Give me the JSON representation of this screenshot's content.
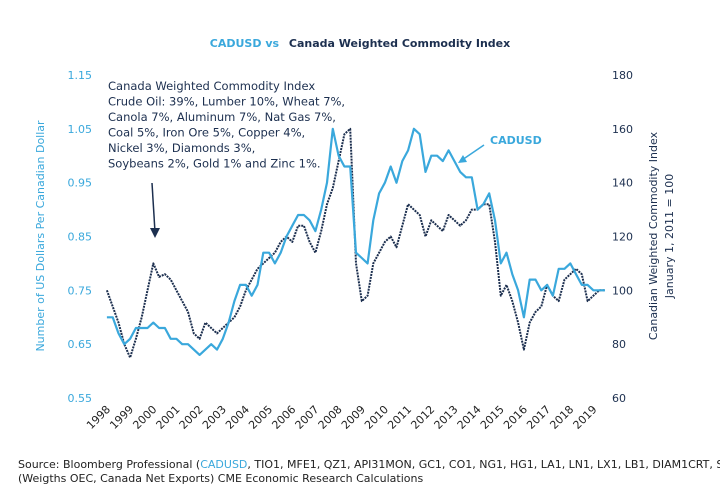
{
  "chart_data": {
    "type": "line",
    "title": [
      "CADUSD vs",
      "Canada Weighted Commodity Index"
    ],
    "title_colors": [
      "#3aa8dc",
      "#1c2f4f"
    ],
    "y_label": "Number of US Dollars Per Canadian Dollar",
    "y2_label": [
      "Canadian Weighted Commodity Index",
      "January 1, 2011 = 100"
    ],
    "annotation": [
      "Canada Weighted Commodity Index",
      "Crude Oil: 39%, Lumber 10%, Wheat 7%,",
      "Canola 7%, Aluminum 7%, Nat Gas 7%,",
      "Coal 5%, Iron Ore 5%, Copper 4%,",
      "Nickel 3%, Diamonds 3%,",
      "Soybeans 2%, Gold 1% and Zinc 1%."
    ],
    "series_label": "CADUSD",
    "source": [
      "Source: Bloomberg Professional (",
      "CADUSD",
      ", TIO1, MFE1, QZ1, API31MON, GC1, CO1, NG1, HG1, LA1, LN1, LX1, LB1, DIAM1CRT, S 1, RS1),",
      "(Weigths OEC, Canada Net Exports) CME Economic Research Calculations"
    ],
    "xlim": [
      1997.7,
      2019.5
    ],
    "xticks": [
      1998,
      1999,
      2000,
      2001,
      2002,
      2003,
      2004,
      2005,
      2006,
      2007,
      2008,
      2009,
      2010,
      2011,
      2012,
      2013,
      2014,
      2015,
      2016,
      2017,
      2018,
      2019
    ],
    "ylim": [
      0.55,
      1.15
    ],
    "yticks": [
      0.55,
      0.65,
      0.75,
      0.85,
      0.95,
      1.05,
      1.15
    ],
    "y2lim": [
      60,
      180
    ],
    "y2ticks": [
      60,
      80,
      100,
      120,
      140,
      160,
      180
    ],
    "x": [
      1998.0,
      1998.25,
      1998.5,
      1998.75,
      1999.0,
      1999.25,
      1999.5,
      1999.75,
      2000.0,
      2000.25,
      2000.5,
      2000.75,
      2001.0,
      2001.25,
      2001.5,
      2001.75,
      2002.0,
      2002.25,
      2002.5,
      2002.75,
      2003.0,
      2003.25,
      2003.5,
      2003.75,
      2004.0,
      2004.25,
      2004.5,
      2004.75,
      2005.0,
      2005.25,
      2005.5,
      2005.75,
      2006.0,
      2006.25,
      2006.5,
      2006.75,
      2007.0,
      2007.25,
      2007.5,
      2007.75,
      2008.0,
      2008.25,
      2008.5,
      2008.75,
      2009.0,
      2009.25,
      2009.5,
      2009.75,
      2010.0,
      2010.25,
      2010.5,
      2010.75,
      2011.0,
      2011.25,
      2011.5,
      2011.75,
      2012.0,
      2012.25,
      2012.5,
      2012.75,
      2013.0,
      2013.25,
      2013.5,
      2013.75,
      2014.0,
      2014.25,
      2014.5,
      2014.75,
      2015.0,
      2015.25,
      2015.5,
      2015.75,
      2016.0,
      2016.25,
      2016.5,
      2016.75,
      2017.0,
      2017.25,
      2017.5,
      2017.75,
      2018.0,
      2018.25,
      2018.5,
      2018.75,
      2019.0,
      2019.25,
      2019.5
    ],
    "series": [
      {
        "name": "CADUSD",
        "color": "#3aa8dc",
        "axis": "y",
        "values": [
          0.7,
          0.7,
          0.67,
          0.65,
          0.66,
          0.68,
          0.68,
          0.68,
          0.69,
          0.68,
          0.68,
          0.66,
          0.66,
          0.65,
          0.65,
          0.64,
          0.63,
          0.64,
          0.65,
          0.64,
          0.66,
          0.69,
          0.73,
          0.76,
          0.76,
          0.74,
          0.76,
          0.82,
          0.82,
          0.8,
          0.82,
          0.85,
          0.87,
          0.89,
          0.89,
          0.88,
          0.86,
          0.9,
          0.95,
          1.05,
          1.0,
          0.98,
          0.98,
          0.82,
          0.81,
          0.8,
          0.88,
          0.93,
          0.95,
          0.98,
          0.95,
          0.99,
          1.01,
          1.05,
          1.04,
          0.97,
          1.0,
          1.0,
          0.99,
          1.01,
          0.99,
          0.97,
          0.96,
          0.96,
          0.9,
          0.91,
          0.93,
          0.88,
          0.8,
          0.82,
          0.78,
          0.75,
          0.7,
          0.77,
          0.77,
          0.75,
          0.76,
          0.74,
          0.79,
          0.79,
          0.8,
          0.78,
          0.76,
          0.76,
          0.75,
          0.75,
          0.75
        ]
      },
      {
        "name": "Canada Weighted Commodity Index",
        "color": "#1c2f4f",
        "axis": "y2",
        "values": [
          100,
          94,
          88,
          80,
          75,
          82,
          90,
          100,
          110,
          105,
          106,
          104,
          100,
          96,
          92,
          84,
          82,
          88,
          86,
          84,
          86,
          88,
          90,
          94,
          100,
          104,
          108,
          110,
          112,
          114,
          118,
          120,
          118,
          124,
          124,
          118,
          114,
          122,
          132,
          138,
          148,
          158,
          160,
          110,
          96,
          98,
          110,
          114,
          118,
          120,
          116,
          124,
          132,
          130,
          128,
          120,
          126,
          124,
          122,
          128,
          126,
          124,
          126,
          130,
          130,
          132,
          132,
          118,
          98,
          102,
          96,
          88,
          78,
          88,
          92,
          94,
          102,
          98,
          96,
          104,
          106,
          108,
          106,
          96,
          98,
          100,
          100
        ]
      }
    ]
  }
}
